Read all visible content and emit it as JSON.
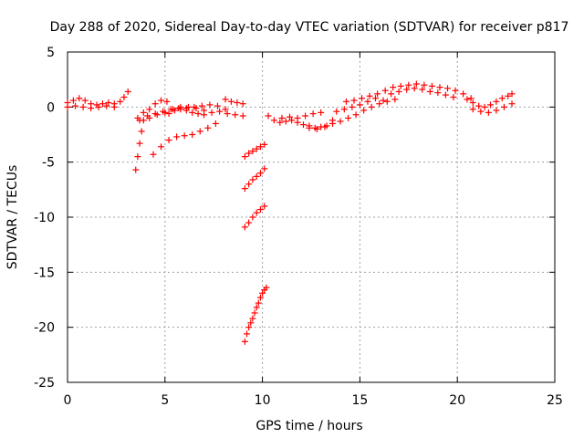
{
  "chart_data": {
    "type": "scatter",
    "title": "Day 288 of 2020, Sidereal Day-to-day VTEC variation (SDTVAR) for receiver p817",
    "xlabel": "GPS time / hours",
    "ylabel": "SDTVAR / TECUs",
    "xlim": [
      0,
      25
    ],
    "ylim": [
      -25,
      5
    ],
    "xticks": [
      "0",
      "5",
      "10",
      "15",
      "20",
      "25"
    ],
    "yticks": [
      "5",
      "0",
      "-5",
      "-10",
      "-15",
      "-20",
      "-25"
    ],
    "grid": true,
    "marker": "+",
    "marker_color": "#ff0000",
    "series": [
      {
        "name": "SDTVAR",
        "tracks": [
          {
            "x": [
              0.0,
              0.3,
              0.6,
              0.9,
              1.2,
              1.5,
              1.8,
              2.1,
              2.4,
              2.7,
              2.9,
              3.1
            ],
            "y": [
              0.4,
              0.6,
              0.8,
              0.6,
              0.3,
              0.2,
              0.3,
              0.4,
              0.3,
              0.5,
              0.9,
              1.4
            ]
          },
          {
            "x": [
              0.0,
              0.4,
              0.8,
              1.2,
              1.6,
              2.0,
              2.4
            ],
            "y": [
              0.0,
              0.1,
              0.0,
              -0.1,
              0.0,
              0.1,
              0.0
            ]
          },
          {
            "x": [
              3.5,
              3.6,
              3.7,
              3.8,
              3.9
            ],
            "y": [
              -5.7,
              -4.5,
              -3.3,
              -2.2,
              -1.2
            ]
          },
          {
            "x": [
              3.6,
              3.9,
              4.2,
              4.5,
              4.8,
              5.1
            ],
            "y": [
              -1.0,
              -0.5,
              -0.2,
              0.3,
              0.6,
              0.5
            ]
          },
          {
            "x": [
              3.7,
              4.1,
              4.5,
              4.9,
              5.3,
              5.7,
              6.1,
              6.5,
              6.9,
              7.3,
              7.7,
              8.1
            ],
            "y": [
              -1.2,
              -0.8,
              -0.6,
              -0.4,
              -0.2,
              -0.1,
              -0.1,
              0.0,
              0.1,
              0.2,
              0.1,
              -0.2
            ]
          },
          {
            "x": [
              4.2,
              4.6,
              5.0,
              5.4,
              5.8,
              6.2,
              6.6,
              7.0,
              7.4,
              7.8,
              8.2,
              8.6,
              9.0
            ],
            "y": [
              -1.0,
              -0.7,
              -0.5,
              -0.2,
              0.0,
              0.0,
              -0.1,
              -0.3,
              -0.5,
              -0.4,
              -0.6,
              -0.7,
              -0.8
            ]
          },
          {
            "x": [
              5.2,
              5.5,
              5.8,
              6.1,
              6.4,
              6.7,
              7.0
            ],
            "y": [
              -0.6,
              -0.3,
              -0.2,
              -0.3,
              -0.5,
              -0.6,
              -0.7
            ]
          },
          {
            "x": [
              8.1,
              8.4,
              8.7,
              9.0
            ],
            "y": [
              0.7,
              0.5,
              0.4,
              0.3
            ]
          },
          {
            "x": [
              4.4,
              4.8,
              5.2,
              5.6,
              6.0,
              6.4,
              6.8,
              7.2,
              7.6
            ],
            "y": [
              -4.3,
              -3.6,
              -3.0,
              -2.7,
              -2.6,
              -2.5,
              -2.2,
              -1.9,
              -1.5
            ]
          },
          {
            "x": [
              9.1,
              9.3,
              9.5,
              9.7,
              9.9,
              10.1
            ],
            "y": [
              -4.5,
              -4.2,
              -4.0,
              -3.8,
              -3.6,
              -3.4
            ]
          },
          {
            "x": [
              9.1,
              9.3,
              9.5,
              9.7,
              9.9,
              10.1
            ],
            "y": [
              -7.4,
              -7.0,
              -6.6,
              -6.3,
              -6.0,
              -5.6
            ]
          },
          {
            "x": [
              9.1,
              9.3,
              9.5,
              9.7,
              9.9,
              10.1
            ],
            "y": [
              -10.9,
              -10.5,
              -10.0,
              -9.6,
              -9.3,
              -9.0
            ]
          },
          {
            "x": [
              9.1,
              9.2,
              9.3,
              9.4,
              9.5,
              9.6,
              9.7,
              9.8,
              9.9,
              10.0,
              10.1,
              10.2
            ],
            "y": [
              -21.3,
              -20.6,
              -20.0,
              -19.6,
              -19.2,
              -18.7,
              -18.2,
              -17.8,
              -17.3,
              -16.9,
              -16.6,
              -16.4
            ]
          },
          {
            "x": [
              10.3,
              10.6,
              10.9,
              11.2,
              11.5,
              11.8,
              12.1,
              12.4,
              12.7,
              13.0,
              13.3,
              13.6
            ],
            "y": [
              -0.8,
              -1.2,
              -1.4,
              -1.3,
              -1.2,
              -1.4,
              -1.6,
              -1.7,
              -1.9,
              -1.8,
              -1.7,
              -1.2
            ]
          },
          {
            "x": [
              11.0,
              11.4,
              11.8,
              12.2,
              12.6,
              13.0
            ],
            "y": [
              -1.0,
              -0.9,
              -1.0,
              -0.8,
              -0.6,
              -0.5
            ]
          },
          {
            "x": [
              12.4,
              12.8,
              13.2,
              13.6,
              14.0,
              14.4,
              14.8,
              15.2,
              15.6,
              16.0,
              16.4,
              16.8
            ],
            "y": [
              -1.9,
              -2.0,
              -1.8,
              -1.5,
              -1.3,
              -1.0,
              -0.7,
              -0.3,
              0.0,
              0.3,
              0.5,
              0.7
            ]
          },
          {
            "x": [
              13.8,
              14.2,
              14.6,
              15.0,
              15.4,
              15.8,
              16.2
            ],
            "y": [
              -0.4,
              -0.2,
              0.0,
              0.2,
              0.5,
              0.8,
              0.6
            ]
          },
          {
            "x": [
              14.3,
              14.7,
              15.1,
              15.5,
              15.9,
              16.3,
              16.7,
              17.1,
              17.5,
              17.9,
              18.3,
              18.7,
              19.1,
              19.5,
              19.9,
              20.3,
              20.7
            ],
            "y": [
              0.5,
              0.6,
              0.8,
              1.0,
              1.2,
              1.5,
              1.8,
              1.9,
              2.0,
              2.1,
              2.0,
              1.9,
              1.8,
              1.7,
              1.5,
              1.2,
              0.8
            ]
          },
          {
            "x": [
              16.6,
              17.0,
              17.4,
              17.8,
              18.2,
              18.6,
              19.0,
              19.4,
              19.8
            ],
            "y": [
              1.2,
              1.4,
              1.6,
              1.7,
              1.6,
              1.4,
              1.3,
              1.1,
              0.9
            ]
          },
          {
            "x": [
              20.5,
              20.8,
              21.1,
              21.4,
              21.7,
              22.0,
              22.3,
              22.6,
              22.8
            ],
            "y": [
              0.7,
              0.4,
              0.1,
              0.0,
              0.2,
              0.5,
              0.8,
              1.0,
              1.2
            ]
          },
          {
            "x": [
              20.8,
              21.2,
              21.6,
              22.0,
              22.4,
              22.8
            ],
            "y": [
              -0.2,
              -0.4,
              -0.5,
              -0.3,
              0.0,
              0.3
            ]
          }
        ]
      }
    ]
  }
}
